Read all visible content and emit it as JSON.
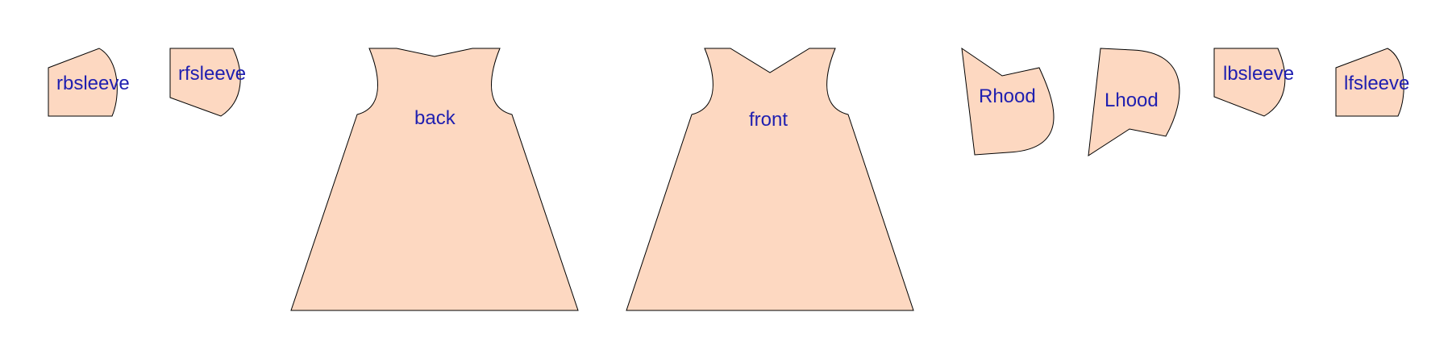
{
  "diagram": {
    "fill_color": "#fdd8c1",
    "stroke_color": "#000000",
    "label_color": "#1f1fb0",
    "pieces": [
      {
        "id": "rbsleeve",
        "label": "rbsleeve"
      },
      {
        "id": "rfsleeve",
        "label": "rfsleeve"
      },
      {
        "id": "back",
        "label": "back"
      },
      {
        "id": "front",
        "label": "front"
      },
      {
        "id": "rhood",
        "label": "Rhood"
      },
      {
        "id": "lhood",
        "label": "Lhood"
      },
      {
        "id": "lbsleeve",
        "label": "lbsleeve"
      },
      {
        "id": "lfsleeve",
        "label": "lfsleeve"
      }
    ]
  }
}
